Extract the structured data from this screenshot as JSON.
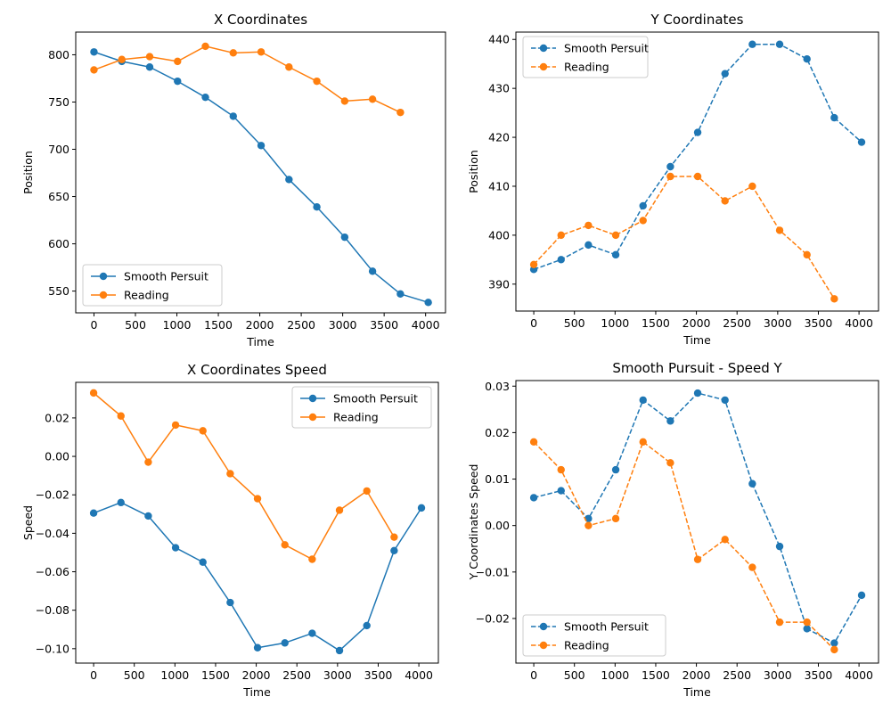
{
  "colors": {
    "smooth": "#1f77b4",
    "reading": "#ff7f0e"
  },
  "chart_data": [
    {
      "type": "line",
      "title": "X Coordinates",
      "xlabel": "Time",
      "ylabel": "Position",
      "xlim": [
        -220,
        4240
      ],
      "ylim": [
        527,
        824
      ],
      "xticks": [
        0,
        500,
        1000,
        1500,
        2000,
        2500,
        3000,
        3500,
        4000
      ],
      "yticks": [
        550,
        600,
        650,
        700,
        750,
        800
      ],
      "line_style": "solid",
      "legend": "lower-left",
      "series": [
        {
          "name": "Smooth Persuit",
          "color": "#1f77b4",
          "x": [
            0,
            336,
            672,
            1008,
            1344,
            1680,
            2016,
            2352,
            2688,
            3024,
            3360,
            3696,
            4032
          ],
          "y": [
            803,
            793,
            787,
            772,
            755,
            735,
            704,
            668,
            639,
            607,
            571,
            547,
            538
          ]
        },
        {
          "name": "Reading",
          "color": "#ff7f0e",
          "x": [
            0,
            336,
            672,
            1008,
            1344,
            1680,
            2016,
            2352,
            2688,
            3024,
            3360,
            3696
          ],
          "y": [
            784,
            795,
            798,
            793,
            809,
            802,
            803,
            787,
            772,
            751,
            753,
            739
          ]
        }
      ]
    },
    {
      "type": "line",
      "title": "Y Coordinates",
      "xlabel": "Time",
      "ylabel": "Position",
      "xlim": [
        -220,
        4240
      ],
      "ylim": [
        384.5,
        441.5
      ],
      "xticks": [
        0,
        500,
        1000,
        1500,
        2000,
        2500,
        3000,
        3500,
        4000
      ],
      "yticks": [
        390,
        400,
        410,
        420,
        430,
        440
      ],
      "line_style": "dashed",
      "legend": "upper-left",
      "series": [
        {
          "name": "Smooth Persuit",
          "color": "#1f77b4",
          "x": [
            0,
            336,
            672,
            1008,
            1344,
            1680,
            2016,
            2352,
            2688,
            3024,
            3360,
            3696,
            4032
          ],
          "y": [
            393,
            395,
            398,
            396,
            406,
            414,
            421,
            433,
            439,
            439,
            436,
            424,
            419
          ]
        },
        {
          "name": "Reading",
          "color": "#ff7f0e",
          "x": [
            0,
            336,
            672,
            1008,
            1344,
            1680,
            2016,
            2352,
            2688,
            3024,
            3360,
            3696
          ],
          "y": [
            394,
            400,
            402,
            400,
            403,
            412,
            412,
            407,
            410,
            401,
            396,
            387
          ]
        }
      ]
    },
    {
      "type": "line",
      "title": "X Coordinates Speed",
      "xlabel": "Time",
      "ylabel": "Speed",
      "xlim": [
        -220,
        4240
      ],
      "ylim": [
        -0.1075,
        0.0385
      ],
      "xticks": [
        0,
        500,
        1000,
        1500,
        2000,
        2500,
        3000,
        3500,
        4000
      ],
      "yticks": [
        -0.1,
        -0.08,
        -0.06,
        -0.04,
        -0.02,
        0.0,
        0.02
      ],
      "ytick_labels": [
        "−0.10",
        "−0.08",
        "−0.06",
        "−0.04",
        "−0.02",
        "0.00",
        "0.02"
      ],
      "line_style": "solid",
      "legend": "upper-right",
      "series": [
        {
          "name": "Smooth Persuit",
          "color": "#1f77b4",
          "x": [
            0,
            336,
            672,
            1008,
            1344,
            1680,
            2016,
            2352,
            2688,
            3024,
            3360,
            3696,
            4032
          ],
          "y": [
            -0.0295,
            -0.024,
            -0.031,
            -0.0475,
            -0.055,
            -0.076,
            -0.0995,
            -0.097,
            -0.092,
            -0.101,
            -0.088,
            -0.049,
            -0.0268
          ]
        },
        {
          "name": "Reading",
          "color": "#ff7f0e",
          "x": [
            0,
            336,
            672,
            1008,
            1344,
            1680,
            2016,
            2352,
            2688,
            3024,
            3360,
            3696
          ],
          "y": [
            0.033,
            0.021,
            -0.003,
            0.0163,
            0.0133,
            -0.009,
            -0.022,
            -0.046,
            -0.0535,
            -0.028,
            -0.018,
            -0.042
          ]
        }
      ]
    },
    {
      "type": "line",
      "title": "Smooth Pursuit - Speed Y",
      "xlabel": "Time",
      "ylabel": "Y Coordinates Speed",
      "xlim": [
        -220,
        4240
      ],
      "ylim": [
        -0.0296,
        0.0312
      ],
      "xticks": [
        0,
        500,
        1000,
        1500,
        2000,
        2500,
        3000,
        3500,
        4000
      ],
      "yticks": [
        -0.02,
        -0.01,
        0.0,
        0.01,
        0.02,
        0.03
      ],
      "ytick_labels": [
        "−0.02",
        "−0.01",
        "0.00",
        "0.01",
        "0.02",
        "0.03"
      ],
      "line_style": "dashed",
      "legend": "lower-left",
      "series": [
        {
          "name": "Smooth Persuit",
          "color": "#1f77b4",
          "x": [
            0,
            336,
            672,
            1008,
            1344,
            1680,
            2016,
            2352,
            2688,
            3024,
            3360,
            3696,
            4032
          ],
          "y": [
            0.006,
            0.0075,
            0.0015,
            0.012,
            0.027,
            0.0225,
            0.0285,
            0.027,
            0.009,
            -0.0045,
            -0.0222,
            -0.0253,
            -0.015
          ]
        },
        {
          "name": "Reading",
          "color": "#ff7f0e",
          "x": [
            0,
            336,
            672,
            1008,
            1344,
            1680,
            2016,
            2352,
            2688,
            3024,
            3360,
            3696
          ],
          "y": [
            0.018,
            0.012,
            0.0,
            0.0015,
            0.018,
            0.0135,
            -0.0073,
            -0.003,
            -0.009,
            -0.0208,
            -0.0208,
            -0.0267
          ]
        }
      ]
    }
  ]
}
